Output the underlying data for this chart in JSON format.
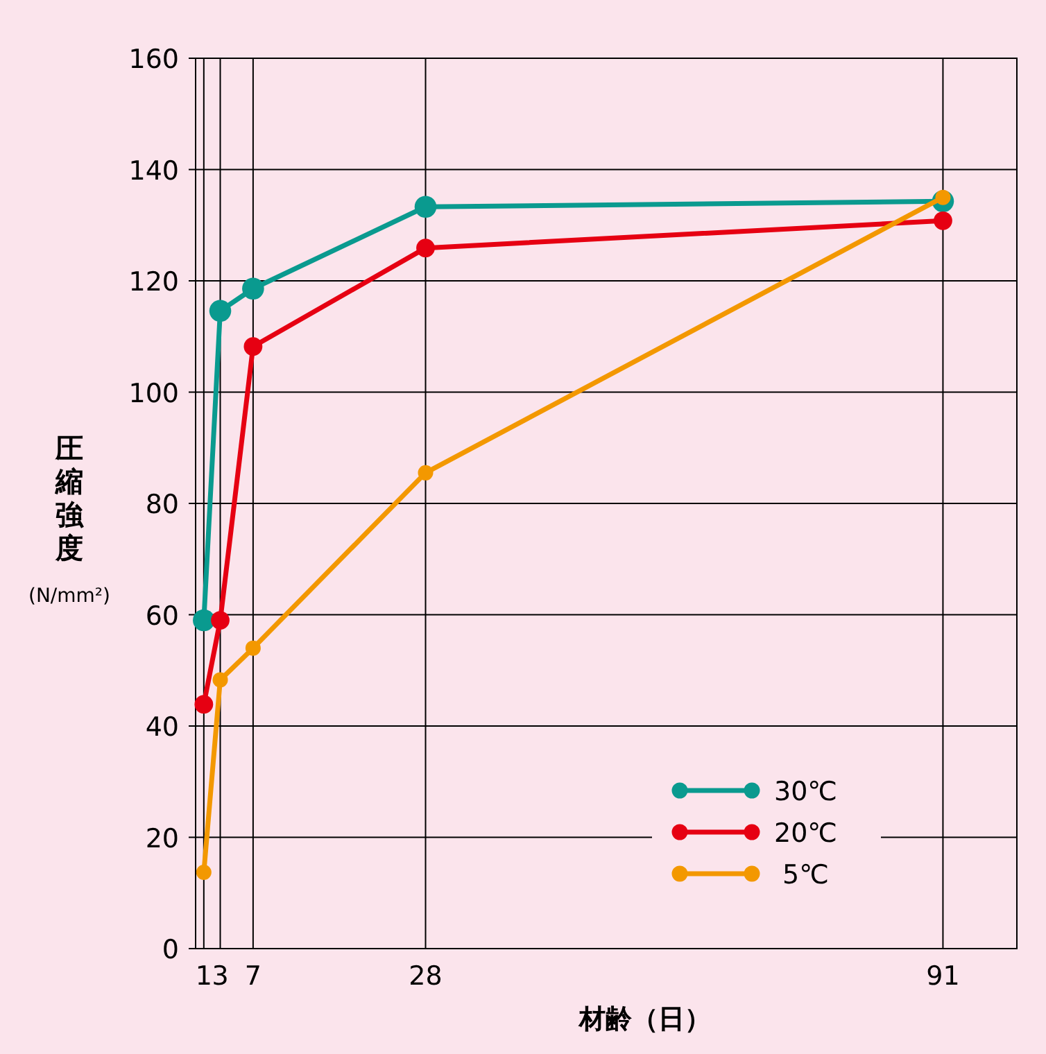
{
  "chart_data": {
    "type": "line",
    "xlabel": "材齢（日）",
    "ylabel": "圧縮強度\n(N/mm²)",
    "xlim": [
      0,
      100
    ],
    "xticks": [
      1,
      3,
      7,
      28,
      91
    ],
    "ylim": [
      0,
      160
    ],
    "yticks": [
      0,
      20,
      40,
      60,
      80,
      100,
      120,
      140,
      160
    ],
    "grid": true,
    "legend": "bottom right",
    "marker": "circle",
    "line_style": "solid",
    "series": [
      {
        "name": "30℃",
        "color": "#0a9a8f",
        "x": [
          1,
          3,
          7,
          28,
          91
        ],
        "values": [
          59,
          114.6,
          118.6,
          133.3,
          134.3
        ]
      },
      {
        "name": "20℃",
        "color": "#e60012",
        "x": [
          1,
          3,
          7,
          28,
          91
        ],
        "values": [
          43.9,
          59,
          108.2,
          125.9,
          130.8
        ]
      },
      {
        "name": " 5℃",
        "color": "#f39800",
        "x": [
          1,
          3,
          7,
          28,
          91
        ],
        "values": [
          13.7,
          48.3,
          54,
          85.5,
          135
        ]
      }
    ]
  }
}
